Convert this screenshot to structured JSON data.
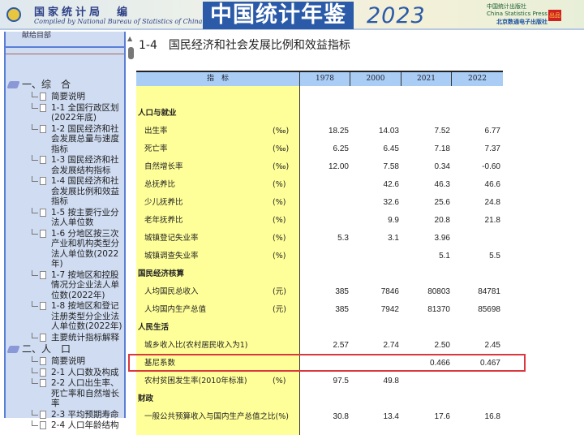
{
  "banner": {
    "publisher_cn": "国家统计局　编",
    "publisher_en": "Compiled by National Bureau of Statistics of China",
    "title": "中国统计年鉴",
    "year": "2023",
    "press_cn": "中国统计出版社",
    "press_en": "China Statistics Press",
    "press2": "北京数通电子出版社",
    "badge": "出品"
  },
  "sidebar": {
    "top_label": "献给目部",
    "tree": [
      {
        "type": "cat",
        "label": "一、综　合"
      },
      {
        "type": "leaf",
        "label": "简要说明"
      },
      {
        "type": "leaf",
        "label": "1-1 全国行政区划(2022年底)"
      },
      {
        "type": "leaf",
        "label": "1-2 国民经济和社会发展总量与速度指标"
      },
      {
        "type": "leaf",
        "label": "1-3 国民经济和社会发展结构指标"
      },
      {
        "type": "leaf",
        "label": "1-4 国民经济和社会发展比例和效益指标"
      },
      {
        "type": "leaf",
        "label": "1-5 按主要行业分法人单位数"
      },
      {
        "type": "leaf",
        "label": "1-6 分地区按三次产业和机构类型分法人单位数(2022年)"
      },
      {
        "type": "leaf",
        "label": "1-7 按地区和控股情况分企业法人单位数(2022年)"
      },
      {
        "type": "leaf",
        "label": "1-8 按地区和登记注册类型分企业法人单位数(2022年)"
      },
      {
        "type": "leaf",
        "label": "主要统计指标解释"
      },
      {
        "type": "cat",
        "label": "二、人　口"
      },
      {
        "type": "leaf",
        "label": "简要说明"
      },
      {
        "type": "leaf",
        "label": "2-1 人口数及构成"
      },
      {
        "type": "leaf",
        "label": "2-2 人口出生率、死亡率和自然增长率"
      },
      {
        "type": "leaf",
        "label": "2-3 平均预期寿命"
      },
      {
        "type": "leaf",
        "label": "2-4 人口年龄结构"
      }
    ]
  },
  "page": {
    "title": "1-4　国民经济和社会发展比例和效益指标"
  },
  "table": {
    "headers": [
      "指　标",
      "1978",
      "2000",
      "2021",
      "2022"
    ],
    "rows": [
      {
        "label": "人口与就业",
        "section": true,
        "unit": "",
        "values": [
          "",
          "",
          "",
          ""
        ]
      },
      {
        "label": "出生率",
        "unit": "(‰)",
        "values": [
          "18.25",
          "14.03",
          "7.52",
          "6.77"
        ]
      },
      {
        "label": "死亡率",
        "unit": "(‰)",
        "values": [
          "6.25",
          "6.45",
          "7.18",
          "7.37"
        ]
      },
      {
        "label": "自然增长率",
        "unit": "(‰)",
        "values": [
          "12.00",
          "7.58",
          "0.34",
          "-0.60"
        ]
      },
      {
        "label": "总抚养比",
        "unit": "(%)",
        "values": [
          "",
          "42.6",
          "46.3",
          "46.6"
        ]
      },
      {
        "label": "少儿抚养比",
        "unit": "(%)",
        "values": [
          "",
          "32.6",
          "25.6",
          "24.8"
        ]
      },
      {
        "label": "老年抚养比",
        "unit": "(%)",
        "values": [
          "",
          "9.9",
          "20.8",
          "21.8"
        ]
      },
      {
        "label": "城镇登记失业率",
        "unit": "(%)",
        "values": [
          "5.3",
          "3.1",
          "3.96",
          ""
        ]
      },
      {
        "label": "城镇调查失业率",
        "unit": "(%)",
        "values": [
          "",
          "",
          "5.1",
          "5.5"
        ]
      },
      {
        "label": "国民经济核算",
        "section": true,
        "unit": "",
        "values": [
          "",
          "",
          "",
          ""
        ]
      },
      {
        "label": "人均国民总收入",
        "unit": "(元)",
        "values": [
          "385",
          "7846",
          "80803",
          "84781"
        ]
      },
      {
        "label": "人均国内生产总值",
        "unit": "(元)",
        "values": [
          "385",
          "7942",
          "81370",
          "85698"
        ]
      },
      {
        "label": "人民生活",
        "section": true,
        "unit": "",
        "values": [
          "",
          "",
          "",
          ""
        ]
      },
      {
        "label": "城乡收入比(农村居民收入为1)",
        "unit": "",
        "values": [
          "2.57",
          "2.74",
          "2.50",
          "2.45"
        ]
      },
      {
        "label": "基尼系数",
        "unit": "",
        "values": [
          "",
          "",
          "0.466",
          "0.467"
        ],
        "highlighted": true
      },
      {
        "label": "农村贫困发生率(2010年标准)",
        "unit": "(%)",
        "values": [
          "97.5",
          "49.8",
          "",
          ""
        ]
      },
      {
        "label": "财政",
        "section": true,
        "unit": "",
        "values": [
          "",
          "",
          "",
          ""
        ]
      },
      {
        "label": "一般公共预算收入与国内生产总值之比(%)",
        "unit": "",
        "values": [
          "30.8",
          "13.4",
          "17.6",
          "16.8"
        ]
      }
    ]
  },
  "colors": {
    "header_blue": "#a9cdf5",
    "label_yellow": "#ffff99",
    "highlight_red": "#d9383e",
    "sidebar_bg": "#cfdcf2"
  }
}
